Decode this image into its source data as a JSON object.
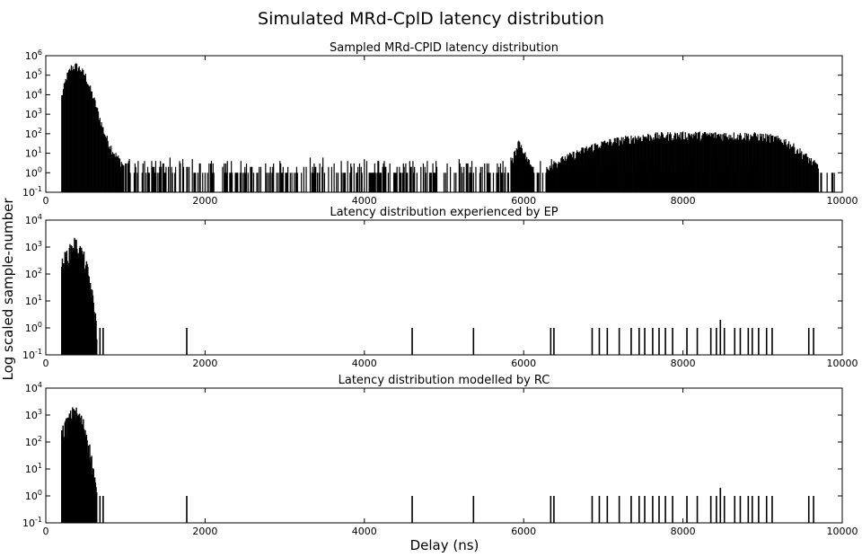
{
  "suptitle": "Simulated MRd-CplD latency distribution",
  "ylabel": "Log scaled sample-number",
  "xlabel": "Delay (ns)",
  "chart_data": [
    {
      "type": "bar",
      "title": "Sampled MRd-CPlD latency distribution",
      "xlabel": "Delay (ns)",
      "ylabel": "Log scaled sample-number",
      "xlim": [
        0,
        10000
      ],
      "ylim": [
        0.1,
        1000000
      ],
      "yscale": "log",
      "xticks": [
        "0",
        "2000",
        "4000",
        "6000",
        "8000",
        "10000"
      ],
      "yticks": [
        {
          "base": "10",
          "exp": "-1"
        },
        {
          "base": "10",
          "exp": "0"
        },
        {
          "base": "10",
          "exp": "1"
        },
        {
          "base": "10",
          "exp": "2"
        },
        {
          "base": "10",
          "exp": "3"
        },
        {
          "base": "10",
          "exp": "4"
        },
        {
          "base": "10",
          "exp": "5"
        },
        {
          "base": "10",
          "exp": "6"
        }
      ],
      "grid": false,
      "color": "#000000",
      "segments": [
        {
          "x": [
            200,
            260,
            320,
            380,
            440,
            500,
            560,
            620,
            680,
            740,
            800,
            860,
            920,
            960,
            980
          ],
          "y": [
            8000,
            80000,
            250000,
            300000,
            200000,
            90000,
            20000,
            4000,
            600,
            100,
            30,
            10,
            5,
            3,
            2
          ]
        },
        {
          "x": [
            1000,
            9000
          ],
          "y": [
            1,
            1
          ],
          "sparse": true,
          "density": 0.55,
          "max": 6
        },
        {
          "x": [
            5850,
            5880,
            5900,
            5930,
            5960,
            5990,
            6020,
            6060,
            6100
          ],
          "y": [
            3,
            8,
            15,
            40,
            30,
            18,
            8,
            4,
            2
          ]
        },
        {
          "x": [
            6300,
            6500,
            6700,
            6900,
            7100,
            7300,
            7500,
            7700,
            7900,
            8100,
            8300,
            8500,
            8700,
            8900,
            9100,
            9300,
            9500,
            9700
          ],
          "y": [
            2,
            5,
            12,
            25,
            40,
            55,
            70,
            80,
            85,
            90,
            88,
            85,
            82,
            80,
            65,
            40,
            10,
            2
          ]
        },
        {
          "x": [
            9720,
            9900
          ],
          "y": [
            1,
            1
          ],
          "sparse": true,
          "density": 0.5,
          "max": 1
        }
      ]
    },
    {
      "type": "bar",
      "title": "Latency distribution experienced by EP",
      "xlabel": "Delay (ns)",
      "ylabel": "Log scaled sample-number",
      "xlim": [
        0,
        10000
      ],
      "ylim": [
        0.1,
        10000
      ],
      "yscale": "log",
      "xticks": [
        "0",
        "2000",
        "4000",
        "6000",
        "8000",
        "10000"
      ],
      "yticks": [
        {
          "base": "10",
          "exp": "-1"
        },
        {
          "base": "10",
          "exp": "0"
        },
        {
          "base": "10",
          "exp": "1"
        },
        {
          "base": "10",
          "exp": "2"
        },
        {
          "base": "10",
          "exp": "3"
        },
        {
          "base": "10",
          "exp": "4"
        }
      ],
      "grid": false,
      "color": "#000000",
      "cluster": {
        "x": [
          200,
          240,
          280,
          320,
          360,
          400,
          440,
          480,
          520,
          560,
          600,
          640
        ],
        "y": [
          200,
          400,
          600,
          900,
          1500,
          1000,
          700,
          400,
          150,
          40,
          8,
          1
        ]
      },
      "spikes": [
        {
          "x": 680,
          "y": 1
        },
        {
          "x": 720,
          "y": 1
        },
        {
          "x": 1770,
          "y": 1
        },
        {
          "x": 4600,
          "y": 1
        },
        {
          "x": 5370,
          "y": 1
        },
        {
          "x": 6340,
          "y": 1
        },
        {
          "x": 6380,
          "y": 1
        },
        {
          "x": 6860,
          "y": 1
        },
        {
          "x": 6950,
          "y": 1
        },
        {
          "x": 7050,
          "y": 1
        },
        {
          "x": 7200,
          "y": 1
        },
        {
          "x": 7350,
          "y": 1
        },
        {
          "x": 7450,
          "y": 1
        },
        {
          "x": 7520,
          "y": 1
        },
        {
          "x": 7620,
          "y": 1
        },
        {
          "x": 7700,
          "y": 1
        },
        {
          "x": 7780,
          "y": 1
        },
        {
          "x": 7870,
          "y": 1
        },
        {
          "x": 8050,
          "y": 1
        },
        {
          "x": 8180,
          "y": 1
        },
        {
          "x": 8350,
          "y": 1
        },
        {
          "x": 8420,
          "y": 1
        },
        {
          "x": 8470,
          "y": 2
        },
        {
          "x": 8520,
          "y": 1
        },
        {
          "x": 8650,
          "y": 1
        },
        {
          "x": 8720,
          "y": 1
        },
        {
          "x": 8820,
          "y": 1
        },
        {
          "x": 8870,
          "y": 1
        },
        {
          "x": 8950,
          "y": 1
        },
        {
          "x": 9050,
          "y": 1
        },
        {
          "x": 9120,
          "y": 1
        },
        {
          "x": 9580,
          "y": 1
        },
        {
          "x": 9640,
          "y": 1
        }
      ]
    },
    {
      "type": "bar",
      "title": "Latency distribution modelled by RC",
      "xlabel": "Delay (ns)",
      "ylabel": "Log scaled sample-number",
      "xlim": [
        0,
        10000
      ],
      "ylim": [
        0.1,
        10000
      ],
      "yscale": "log",
      "xticks": [
        "0",
        "2000",
        "4000",
        "6000",
        "8000",
        "10000"
      ],
      "yticks": [
        {
          "base": "10",
          "exp": "-1"
        },
        {
          "base": "10",
          "exp": "0"
        },
        {
          "base": "10",
          "exp": "1"
        },
        {
          "base": "10",
          "exp": "2"
        },
        {
          "base": "10",
          "exp": "3"
        },
        {
          "base": "10",
          "exp": "4"
        }
      ],
      "grid": false,
      "color": "#000000",
      "cluster": {
        "x": [
          200,
          240,
          280,
          320,
          360,
          400,
          440,
          480,
          520,
          560,
          600,
          640
        ],
        "y": [
          200,
          400,
          600,
          1000,
          1500,
          1000,
          700,
          400,
          150,
          40,
          8,
          1
        ]
      },
      "spikes": [
        {
          "x": 680,
          "y": 1
        },
        {
          "x": 720,
          "y": 1
        },
        {
          "x": 1770,
          "y": 1
        },
        {
          "x": 4600,
          "y": 1
        },
        {
          "x": 5370,
          "y": 1
        },
        {
          "x": 6340,
          "y": 1
        },
        {
          "x": 6380,
          "y": 1
        },
        {
          "x": 6860,
          "y": 1
        },
        {
          "x": 6950,
          "y": 1
        },
        {
          "x": 7050,
          "y": 1
        },
        {
          "x": 7200,
          "y": 1
        },
        {
          "x": 7350,
          "y": 1
        },
        {
          "x": 7450,
          "y": 1
        },
        {
          "x": 7520,
          "y": 1
        },
        {
          "x": 7620,
          "y": 1
        },
        {
          "x": 7700,
          "y": 1
        },
        {
          "x": 7780,
          "y": 1
        },
        {
          "x": 7870,
          "y": 1
        },
        {
          "x": 8050,
          "y": 1
        },
        {
          "x": 8180,
          "y": 1
        },
        {
          "x": 8350,
          "y": 1
        },
        {
          "x": 8420,
          "y": 1
        },
        {
          "x": 8470,
          "y": 2
        },
        {
          "x": 8520,
          "y": 1
        },
        {
          "x": 8650,
          "y": 1
        },
        {
          "x": 8720,
          "y": 1
        },
        {
          "x": 8820,
          "y": 1
        },
        {
          "x": 8870,
          "y": 1
        },
        {
          "x": 8950,
          "y": 1
        },
        {
          "x": 9050,
          "y": 1
        },
        {
          "x": 9120,
          "y": 1
        },
        {
          "x": 9580,
          "y": 1
        },
        {
          "x": 9640,
          "y": 1
        }
      ]
    }
  ]
}
